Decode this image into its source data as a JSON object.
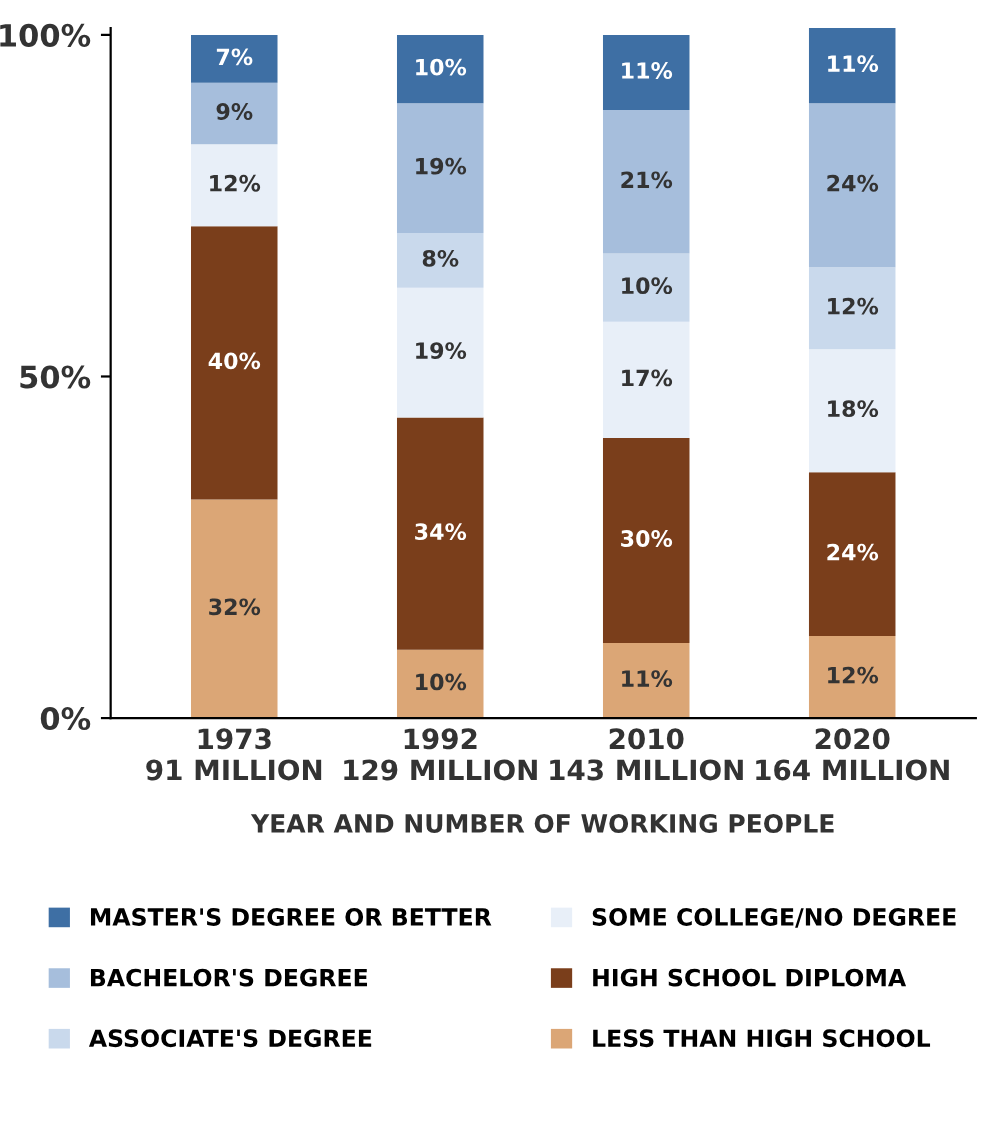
{
  "chart_data": {
    "type": "bar",
    "stacked": true,
    "categories": [
      "1973\n91 MILLION",
      "1992\n129 MILLION",
      "2010\n143 MILLION",
      "2020\n164 MILLION"
    ],
    "xlabel": "YEAR AND NUMBER OF WORKING PEOPLE",
    "series": [
      {
        "name": "LESS THAN HIGH SCHOOL",
        "color": "#dba676",
        "values": [
          32,
          10,
          11,
          12
        ],
        "value_labels": [
          "32%",
          "10%",
          "11%",
          "12%"
        ]
      },
      {
        "name": "HIGH SCHOOL DIPLOMA",
        "color": "#7a3e1b",
        "values": [
          40,
          34,
          30,
          24
        ],
        "value_labels": [
          "40%",
          "34%",
          "30%",
          "24%"
        ]
      },
      {
        "name": "SOME COLLEGE/NO DEGREE",
        "color": "#e8eff8",
        "values": [
          12,
          19,
          17,
          18
        ],
        "value_labels": [
          "12%",
          "19%",
          "17%",
          "18%"
        ]
      },
      {
        "name": "ASSOCIATE'S DEGREE",
        "color": "#c9d9ec",
        "values": [
          null,
          8,
          10,
          12
        ],
        "value_labels": [
          null,
          "8%",
          "10%",
          "12%"
        ]
      },
      {
        "name": "BACHELOR'S DEGREE",
        "color": "#a6bedc",
        "values": [
          9,
          19,
          21,
          24
        ],
        "value_labels": [
          "9%",
          "19%",
          "21%",
          "24%"
        ]
      },
      {
        "name": "MASTER'S DEGREE OR BETTER",
        "color": "#3e6fa4",
        "values": [
          7,
          10,
          11,
          11
        ],
        "value_labels": [
          "7%",
          "10%",
          "11%",
          "11%"
        ]
      }
    ],
    "ylim": [
      0,
      101
    ],
    "yticks": [
      {
        "value": 0,
        "label": "0%"
      },
      {
        "value": 50,
        "label": "50%"
      },
      {
        "value": 100,
        "label": "100%"
      }
    ],
    "legend": "bottom",
    "grid": false
  }
}
